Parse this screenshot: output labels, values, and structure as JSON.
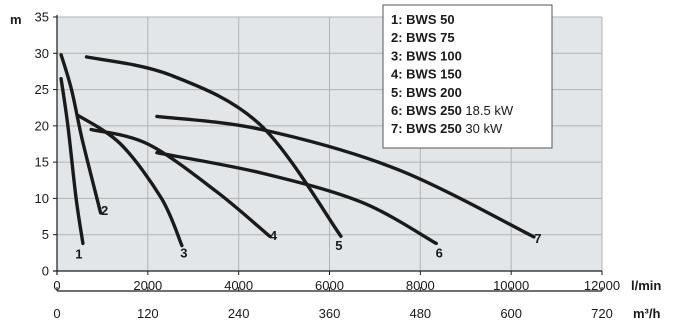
{
  "chart_data": {
    "type": "line",
    "title": "",
    "grid": true,
    "legend_placement": "top-right",
    "y_axis": {
      "unit": "m",
      "range": [
        0,
        35
      ],
      "ticks": [
        "0",
        "5",
        "10",
        "15",
        "20",
        "25",
        "30",
        "35"
      ]
    },
    "x_axis_primary": {
      "unit": "l/min",
      "range": [
        0,
        12000
      ],
      "ticks": [
        "0",
        "2000",
        "4000",
        "6000",
        "8000",
        "10000",
        "12000"
      ]
    },
    "x_axis_secondary": {
      "unit": "m³/h",
      "range": [
        0,
        720
      ],
      "ticks": [
        "0",
        "120",
        "240",
        "360",
        "480",
        "600",
        "720"
      ]
    },
    "legend": [
      {
        "key": "1: BWS 50",
        "note": ""
      },
      {
        "key": "2: BWS 75",
        "note": ""
      },
      {
        "key": "3: BWS 100",
        "note": ""
      },
      {
        "key": "4: BWS 150",
        "note": ""
      },
      {
        "key": "5: BWS 200",
        "note": ""
      },
      {
        "key": "6: BWS 250",
        "note": "18.5 kW"
      },
      {
        "key": "7: BWS 250",
        "note": "30 kW"
      }
    ],
    "series": [
      {
        "label": "1",
        "x": [
          90,
          240,
          420,
          570
        ],
        "y": [
          26.5,
          20,
          10,
          3.8
        ]
      },
      {
        "label": "2",
        "x": [
          90,
          320,
          560,
          960
        ],
        "y": [
          29.8,
          25,
          18,
          8
        ]
      },
      {
        "label": "3",
        "x": [
          450,
          1400,
          2300,
          2750
        ],
        "y": [
          21.5,
          17.5,
          10,
          3.5
        ]
      },
      {
        "label": "4",
        "x": [
          750,
          2000,
          3500,
          4680
        ],
        "y": [
          19.5,
          17.5,
          11,
          4.8
        ]
      },
      {
        "label": "5",
        "x": [
          650,
          2500,
          4500,
          6250
        ],
        "y": [
          29.5,
          27,
          20,
          4.8
        ]
      },
      {
        "label": "6",
        "x": [
          2200,
          4500,
          6700,
          8350
        ],
        "y": [
          16.3,
          13.5,
          9.5,
          3.8
        ]
      },
      {
        "label": "7",
        "x": [
          2200,
          4500,
          7500,
          10500
        ],
        "y": [
          21.3,
          19.5,
          14,
          4.7
        ]
      }
    ],
    "line_color": "#1a1a1a",
    "grid_color": "#b3b3b3",
    "plot_background": "#e3e6e9"
  }
}
